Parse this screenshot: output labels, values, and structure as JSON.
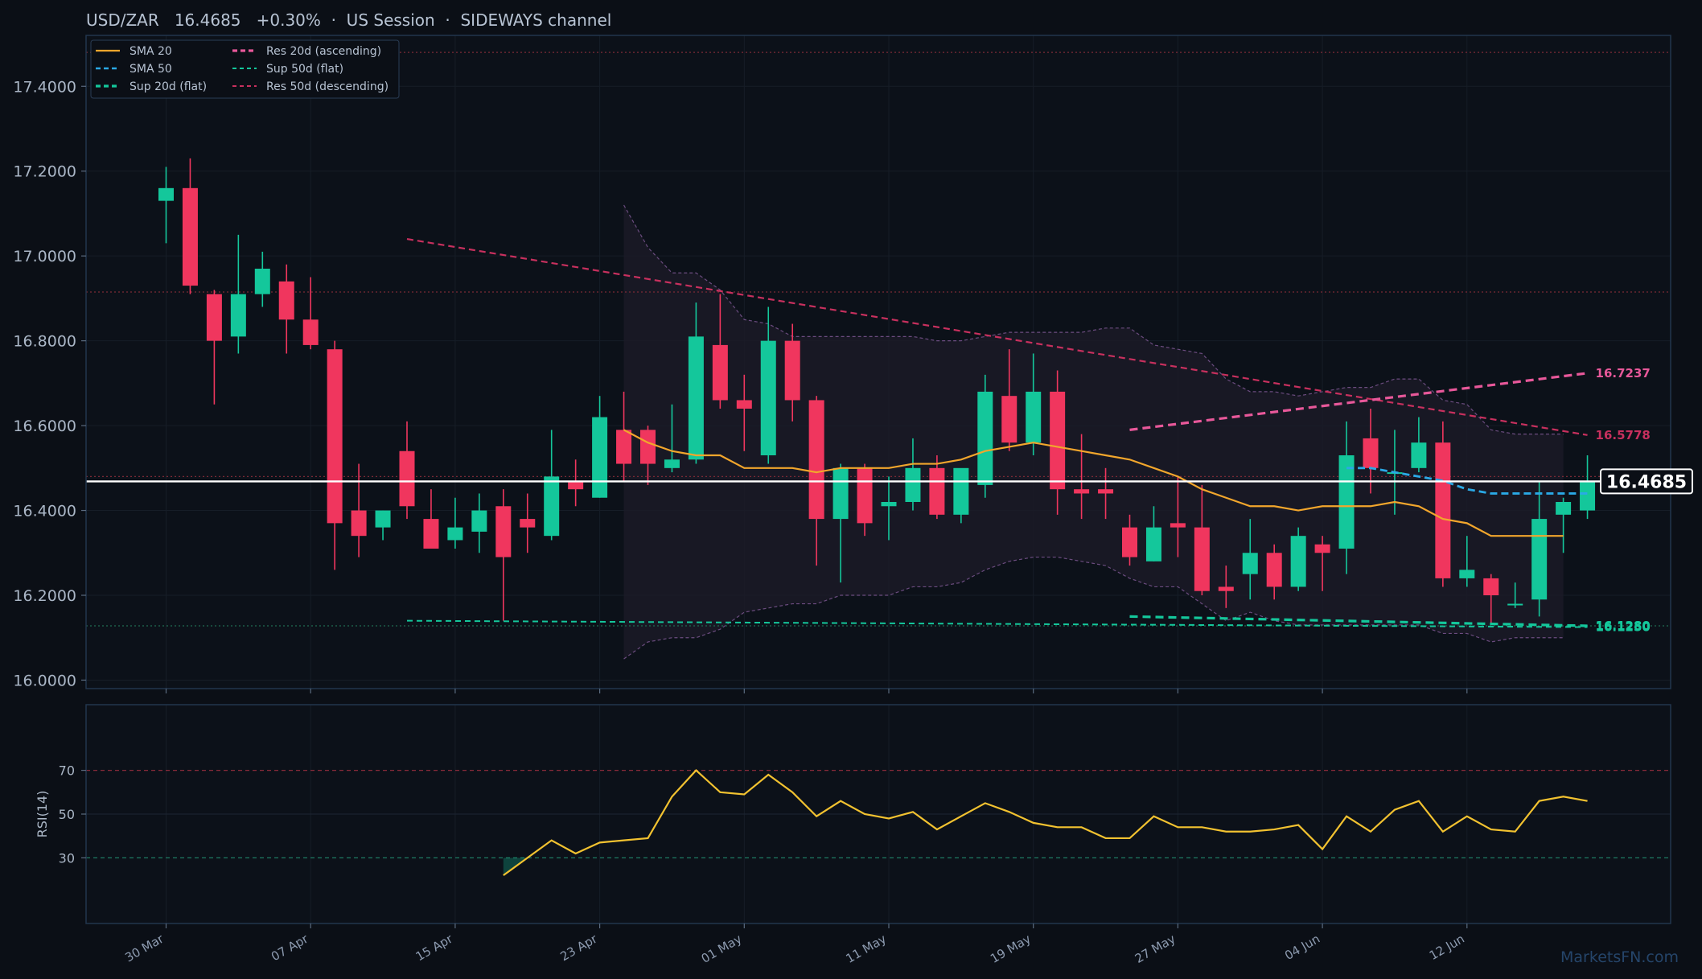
{
  "header": {
    "title": "USD/ZAR   16.4685   +0.30%  ·  US Session  ·  SIDEWAYS channel"
  },
  "watermark": "MarketsFN.com",
  "colors": {
    "background": "#0b0f16",
    "panel_border": "#22364d",
    "up": "#14c79b",
    "down": "#f0365e",
    "sma20": "#f2a62c",
    "sma50": "#2aa9e6",
    "support": "#14c79b",
    "res_asc": "#e8589a",
    "res_desc": "#c8305e",
    "rsi": "#f2c230",
    "channel": "#8a5fa0",
    "price_line": "#ffffff"
  },
  "chart_data": [
    {
      "type": "candlestick",
      "ylim": [
        15.98,
        17.52
      ],
      "y_ticks": [
        "16.0000",
        "16.2000",
        "16.4000",
        "16.6000",
        "16.8000",
        "17.0000",
        "17.2000",
        "17.4000"
      ],
      "y_tick_values": [
        16.0,
        16.2,
        16.4,
        16.6,
        16.8,
        17.0,
        17.2,
        17.4
      ],
      "x_ticks": [
        "30 Mar",
        "07 Apr",
        "15 Apr",
        "23 Apr",
        "01 May",
        "11 May",
        "19 May",
        "27 May",
        "04 Jun",
        "12 Jun"
      ],
      "x_tick_index": [
        0,
        6,
        12,
        18,
        24,
        30,
        36,
        42,
        48,
        54
      ],
      "grid": true,
      "legend_position": "top-left",
      "legend": [
        "SMA 20",
        "SMA 50",
        "Sup 20d (flat)",
        "Res 20d (ascending)",
        "Sup 50d (flat)",
        "Res 50d (descending)"
      ],
      "current_price": 16.4685,
      "current_price_label": "16.4685",
      "horizontal_levels": [
        17.48,
        16.915,
        16.48,
        16.128
      ],
      "candles": [
        {
          "o": 17.13,
          "h": 17.21,
          "l": 17.03,
          "c": 17.16
        },
        {
          "o": 17.16,
          "h": 17.23,
          "l": 16.91,
          "c": 16.93
        },
        {
          "o": 16.91,
          "h": 16.92,
          "l": 16.65,
          "c": 16.8
        },
        {
          "o": 16.81,
          "h": 17.05,
          "l": 16.77,
          "c": 16.91
        },
        {
          "o": 16.91,
          "h": 17.01,
          "l": 16.88,
          "c": 16.97
        },
        {
          "o": 16.94,
          "h": 16.98,
          "l": 16.77,
          "c": 16.85
        },
        {
          "o": 16.85,
          "h": 16.95,
          "l": 16.78,
          "c": 16.79
        },
        {
          "o": 16.78,
          "h": 16.8,
          "l": 16.26,
          "c": 16.37
        },
        {
          "o": 16.4,
          "h": 16.51,
          "l": 16.29,
          "c": 16.34
        },
        {
          "o": 16.36,
          "h": 16.4,
          "l": 16.33,
          "c": 16.4
        },
        {
          "o": 16.54,
          "h": 16.61,
          "l": 16.38,
          "c": 16.41
        },
        {
          "o": 16.38,
          "h": 16.45,
          "l": 16.31,
          "c": 16.31
        },
        {
          "o": 16.33,
          "h": 16.43,
          "l": 16.31,
          "c": 16.36
        },
        {
          "o": 16.35,
          "h": 16.44,
          "l": 16.3,
          "c": 16.4
        },
        {
          "o": 16.41,
          "h": 16.45,
          "l": 16.14,
          "c": 16.29
        },
        {
          "o": 16.38,
          "h": 16.44,
          "l": 16.3,
          "c": 16.36
        },
        {
          "o": 16.34,
          "h": 16.59,
          "l": 16.33,
          "c": 16.48
        },
        {
          "o": 16.47,
          "h": 16.52,
          "l": 16.41,
          "c": 16.45
        },
        {
          "o": 16.43,
          "h": 16.67,
          "l": 16.43,
          "c": 16.62
        },
        {
          "o": 16.59,
          "h": 16.68,
          "l": 16.47,
          "c": 16.51
        },
        {
          "o": 16.59,
          "h": 16.6,
          "l": 16.46,
          "c": 16.51
        },
        {
          "o": 16.5,
          "h": 16.65,
          "l": 16.49,
          "c": 16.52
        },
        {
          "o": 16.52,
          "h": 16.89,
          "l": 16.51,
          "c": 16.81
        },
        {
          "o": 16.79,
          "h": 16.91,
          "l": 16.64,
          "c": 16.66
        },
        {
          "o": 16.66,
          "h": 16.72,
          "l": 16.54,
          "c": 16.64
        },
        {
          "o": 16.53,
          "h": 16.88,
          "l": 16.51,
          "c": 16.8
        },
        {
          "o": 16.8,
          "h": 16.84,
          "l": 16.61,
          "c": 16.66
        },
        {
          "o": 16.66,
          "h": 16.67,
          "l": 16.27,
          "c": 16.38
        },
        {
          "o": 16.38,
          "h": 16.51,
          "l": 16.23,
          "c": 16.5
        },
        {
          "o": 16.5,
          "h": 16.51,
          "l": 16.34,
          "c": 16.37
        },
        {
          "o": 16.41,
          "h": 16.48,
          "l": 16.33,
          "c": 16.42
        },
        {
          "o": 16.42,
          "h": 16.57,
          "l": 16.4,
          "c": 16.5
        },
        {
          "o": 16.5,
          "h": 16.53,
          "l": 16.38,
          "c": 16.39
        },
        {
          "o": 16.39,
          "h": 16.49,
          "l": 16.37,
          "c": 16.5
        },
        {
          "o": 16.46,
          "h": 16.72,
          "l": 16.43,
          "c": 16.68
        },
        {
          "o": 16.67,
          "h": 16.78,
          "l": 16.54,
          "c": 16.56
        },
        {
          "o": 16.56,
          "h": 16.77,
          "l": 16.53,
          "c": 16.68
        },
        {
          "o": 16.68,
          "h": 16.73,
          "l": 16.39,
          "c": 16.45
        },
        {
          "o": 16.45,
          "h": 16.58,
          "l": 16.38,
          "c": 16.44
        },
        {
          "o": 16.45,
          "h": 16.5,
          "l": 16.38,
          "c": 16.44
        },
        {
          "o": 16.36,
          "h": 16.39,
          "l": 16.27,
          "c": 16.29
        },
        {
          "o": 16.28,
          "h": 16.41,
          "l": 16.28,
          "c": 16.36
        },
        {
          "o": 16.37,
          "h": 16.48,
          "l": 16.29,
          "c": 16.36
        },
        {
          "o": 16.36,
          "h": 16.46,
          "l": 16.2,
          "c": 16.21
        },
        {
          "o": 16.22,
          "h": 16.27,
          "l": 16.17,
          "c": 16.21
        },
        {
          "o": 16.25,
          "h": 16.38,
          "l": 16.19,
          "c": 16.3
        },
        {
          "o": 16.3,
          "h": 16.32,
          "l": 16.19,
          "c": 16.22
        },
        {
          "o": 16.22,
          "h": 16.36,
          "l": 16.21,
          "c": 16.34
        },
        {
          "o": 16.32,
          "h": 16.34,
          "l": 16.21,
          "c": 16.3
        },
        {
          "o": 16.31,
          "h": 16.61,
          "l": 16.25,
          "c": 16.53
        },
        {
          "o": 16.57,
          "h": 16.64,
          "l": 16.44,
          "c": 16.5
        },
        {
          "o": 16.49,
          "h": 16.59,
          "l": 16.39,
          "c": 16.49
        },
        {
          "o": 16.5,
          "h": 16.62,
          "l": 16.49,
          "c": 16.56
        },
        {
          "o": 16.56,
          "h": 16.61,
          "l": 16.22,
          "c": 16.24
        },
        {
          "o": 16.24,
          "h": 16.34,
          "l": 16.22,
          "c": 16.26
        },
        {
          "o": 16.24,
          "h": 16.25,
          "l": 16.13,
          "c": 16.2
        },
        {
          "o": 16.18,
          "h": 16.23,
          "l": 16.17,
          "c": 16.18
        },
        {
          "o": 16.19,
          "h": 16.47,
          "l": 16.15,
          "c": 16.38
        },
        {
          "o": 16.39,
          "h": 16.43,
          "l": 16.3,
          "c": 16.42
        },
        {
          "o": 16.4,
          "h": 16.53,
          "l": 16.38,
          "c": 16.47
        }
      ],
      "sma20": {
        "start_index": 19,
        "values": [
          16.59,
          16.56,
          16.54,
          16.53,
          16.53,
          16.5,
          16.5,
          16.5,
          16.49,
          16.5,
          16.5,
          16.5,
          16.51,
          16.51,
          16.52,
          16.54,
          16.55,
          16.56,
          16.55,
          16.54,
          16.53,
          16.52,
          16.5,
          16.48,
          16.45,
          16.43,
          16.41,
          16.41,
          16.4,
          16.41,
          16.41,
          16.41,
          16.42,
          16.41,
          16.38,
          16.37,
          16.34,
          16.34,
          16.34,
          16.34
        ]
      },
      "sma50": {
        "start_index": 49,
        "values": [
          16.5,
          16.5,
          16.49,
          16.48,
          16.47,
          16.45,
          16.44,
          16.44,
          16.44,
          16.44,
          16.44
        ]
      },
      "channel_band": {
        "start_index": 19,
        "upper": [
          17.12,
          17.02,
          16.96,
          16.96,
          16.92,
          16.85,
          16.84,
          16.81,
          16.81,
          16.81,
          16.81,
          16.81,
          16.81,
          16.8,
          16.8,
          16.81,
          16.82,
          16.82,
          16.82,
          16.82,
          16.83,
          16.83,
          16.79,
          16.78,
          16.77,
          16.71,
          16.68,
          16.68,
          16.67,
          16.68,
          16.69,
          16.69,
          16.71,
          16.71,
          16.66,
          16.65,
          16.59,
          16.58,
          16.58,
          16.58
        ],
        "lower": [
          16.05,
          16.09,
          16.1,
          16.1,
          16.12,
          16.16,
          16.17,
          16.18,
          16.18,
          16.2,
          16.2,
          16.2,
          16.22,
          16.22,
          16.23,
          16.26,
          16.28,
          16.29,
          16.29,
          16.28,
          16.27,
          16.24,
          16.22,
          16.22,
          16.18,
          16.14,
          16.16,
          16.14,
          16.13,
          16.13,
          16.13,
          16.13,
          16.13,
          16.13,
          16.11,
          16.11,
          16.09,
          16.1,
          16.1,
          16.1
        ]
      },
      "trendlines": [
        {
          "name": "Res 50d (descending)",
          "x0": 10,
          "y0": 17.04,
          "x1": 59,
          "y1": 16.5778,
          "label": "16.5778"
        },
        {
          "name": "Sup 50d (flat)",
          "x0": 10,
          "y0": 16.14,
          "x1": 59,
          "y1": 16.125,
          "label": "16.1250"
        },
        {
          "name": "Res 20d (ascending)",
          "x0": 40,
          "y0": 16.59,
          "x1": 59,
          "y1": 16.7237,
          "label": "16.7237"
        },
        {
          "name": "Sup 20d (flat)",
          "x0": 40,
          "y0": 16.15,
          "x1": 59,
          "y1": 16.128,
          "label": "16.1280"
        }
      ]
    },
    {
      "type": "line",
      "ylabel": "RSI(14)",
      "ylim": [
        0,
        100
      ],
      "y_ticks": [
        "30",
        "50",
        "70"
      ],
      "y_tick_values": [
        30,
        50,
        70
      ],
      "overbought": 70,
      "oversold": 30,
      "start_index": 14,
      "values": [
        22,
        30,
        38,
        32,
        37,
        38,
        39,
        58,
        70,
        60,
        59,
        68,
        60,
        49,
        56,
        50,
        48,
        51,
        43,
        49,
        55,
        51,
        46,
        44,
        44,
        39,
        39,
        49,
        44,
        44,
        42,
        42,
        43,
        45,
        34,
        49,
        42,
        52,
        56,
        42,
        49,
        43,
        42,
        56,
        58,
        56
      ]
    }
  ]
}
